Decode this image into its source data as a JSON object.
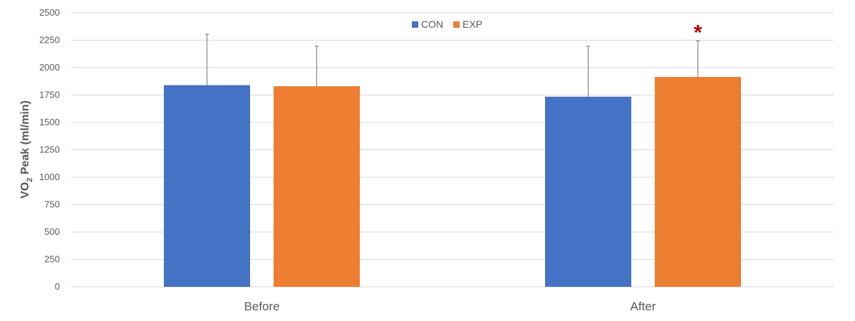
{
  "chart_data": {
    "type": "bar",
    "categories": [
      "Before",
      "After"
    ],
    "series": [
      {
        "name": "CON",
        "color": "#4472c4",
        "values": [
          1840,
          1735
        ],
        "error_upper": [
          2305,
          2195
        ]
      },
      {
        "name": "EXP",
        "color": "#ed7d31",
        "values": [
          1830,
          1915
        ],
        "error_upper": [
          2195,
          2245
        ]
      }
    ],
    "ylabel_main": "VO",
    "ylabel_sub": "2",
    "ylabel_rest": " Peak (ml/min)",
    "ylim": [
      0,
      2500
    ],
    "yticks": [
      0,
      250,
      500,
      750,
      1000,
      1250,
      1500,
      1750,
      2000,
      2250,
      2500
    ],
    "grid": true,
    "legend_position": "top-center",
    "annotations": [
      {
        "category": "After",
        "series": "EXP",
        "text": "*",
        "color": "#c00000"
      }
    ]
  }
}
